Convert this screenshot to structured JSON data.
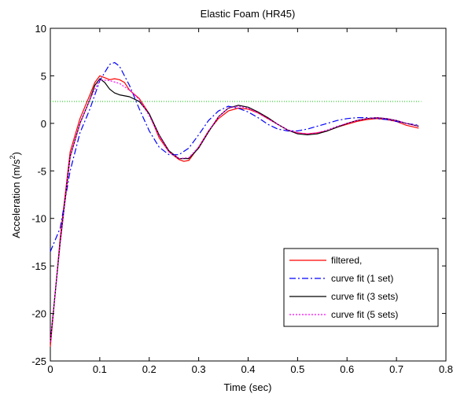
{
  "chart_data": {
    "type": "line",
    "title": "Elastic Foam (HR45)",
    "xlabel": "Time (sec)",
    "ylabel_main": "Acceleration (m/s",
    "ylabel_sup": "2",
    "ylabel_close": ")",
    "xlim": [
      0,
      0.8
    ],
    "ylim": [
      -25,
      10
    ],
    "xticks": [
      0,
      0.1,
      0.2,
      0.3,
      0.4,
      0.5,
      0.6,
      0.7,
      0.8
    ],
    "xtick_labels": [
      "0",
      "0.1",
      "0.2",
      "0.3",
      "0.4",
      "0.5",
      "0.6",
      "0.7",
      "0.8"
    ],
    "yticks": [
      -25,
      -20,
      -15,
      -10,
      -5,
      0,
      5,
      10
    ],
    "ytick_labels": [
      "-25",
      "-20",
      "-15",
      "-10",
      "-5",
      "0",
      "5",
      "10"
    ],
    "grid": false,
    "legend_position": "bottom-right",
    "reference_line": {
      "y": 2.3,
      "color": "#00c000",
      "style": "dotted"
    },
    "series": [
      {
        "name": "filtered,",
        "color": "#ff0000",
        "style": "solid",
        "x": [
          0,
          0.02,
          0.04,
          0.06,
          0.08,
          0.09,
          0.1,
          0.11,
          0.12,
          0.13,
          0.14,
          0.15,
          0.16,
          0.18,
          0.2,
          0.22,
          0.24,
          0.26,
          0.27,
          0.28,
          0.3,
          0.32,
          0.34,
          0.36,
          0.38,
          0.4,
          0.42,
          0.44,
          0.46,
          0.48,
          0.5,
          0.52,
          0.54,
          0.56,
          0.58,
          0.6,
          0.62,
          0.64,
          0.66,
          0.68,
          0.7,
          0.72,
          0.745
        ],
        "y": [
          -23.5,
          -12,
          -3,
          0.5,
          3,
          4.3,
          5.0,
          4.8,
          4.6,
          4.7,
          4.6,
          4.3,
          3.5,
          2.6,
          1.0,
          -1.5,
          -3.0,
          -3.8,
          -4.0,
          -3.9,
          -2.5,
          -0.8,
          0.5,
          1.3,
          1.6,
          1.5,
          1.1,
          0.5,
          -0.1,
          -0.7,
          -1.0,
          -1.1,
          -1.0,
          -0.8,
          -0.4,
          -0.1,
          0.2,
          0.4,
          0.5,
          0.4,
          0.2,
          -0.2,
          -0.5
        ]
      },
      {
        "name": "curve fit (1 set)",
        "color": "#0000ff",
        "style": "dashdot",
        "x": [
          0,
          0.02,
          0.04,
          0.06,
          0.08,
          0.1,
          0.12,
          0.13,
          0.14,
          0.16,
          0.18,
          0.2,
          0.22,
          0.24,
          0.26,
          0.28,
          0.3,
          0.32,
          0.34,
          0.36,
          0.38,
          0.4,
          0.42,
          0.44,
          0.46,
          0.48,
          0.5,
          0.52,
          0.54,
          0.56,
          0.58,
          0.6,
          0.62,
          0.64,
          0.66,
          0.68,
          0.7,
          0.72,
          0.745
        ],
        "y": [
          -13.5,
          -11,
          -5,
          -1,
          1.5,
          4.5,
          6.2,
          6.4,
          6.0,
          4.0,
          1.5,
          -0.8,
          -2.5,
          -3.3,
          -3.3,
          -2.6,
          -1.2,
          0.3,
          1.3,
          1.8,
          1.6,
          1.2,
          0.6,
          -0.1,
          -0.6,
          -0.8,
          -0.8,
          -0.6,
          -0.3,
          0.0,
          0.3,
          0.5,
          0.6,
          0.6,
          0.5,
          0.4,
          0.2,
          0.0,
          -0.2
        ]
      },
      {
        "name": "curve fit (3 sets)",
        "color": "#000000",
        "style": "solid",
        "x": [
          0,
          0.02,
          0.04,
          0.06,
          0.08,
          0.09,
          0.1,
          0.11,
          0.12,
          0.13,
          0.14,
          0.16,
          0.18,
          0.2,
          0.22,
          0.24,
          0.26,
          0.28,
          0.3,
          0.32,
          0.34,
          0.36,
          0.38,
          0.4,
          0.42,
          0.44,
          0.46,
          0.48,
          0.5,
          0.52,
          0.54,
          0.56,
          0.58,
          0.6,
          0.62,
          0.64,
          0.66,
          0.68,
          0.7,
          0.72,
          0.745
        ],
        "y": [
          -23,
          -12.5,
          -3.5,
          0,
          2.5,
          4.0,
          4.7,
          4.3,
          3.6,
          3.2,
          3.0,
          2.8,
          2.3,
          1.0,
          -1.2,
          -2.9,
          -3.7,
          -3.7,
          -2.6,
          -0.9,
          0.7,
          1.6,
          1.9,
          1.7,
          1.2,
          0.6,
          -0.1,
          -0.7,
          -1.1,
          -1.2,
          -1.1,
          -0.8,
          -0.4,
          0.0,
          0.3,
          0.5,
          0.6,
          0.5,
          0.3,
          0.0,
          -0.3
        ]
      },
      {
        "name": "curve fit (5 sets)",
        "color": "#ff00ff",
        "style": "dotted",
        "x": [
          0,
          0.02,
          0.04,
          0.06,
          0.08,
          0.1,
          0.12,
          0.14,
          0.16,
          0.18,
          0.2,
          0.22,
          0.24,
          0.26,
          0.28,
          0.3,
          0.32,
          0.34,
          0.36,
          0.38,
          0.4,
          0.42,
          0.44,
          0.46,
          0.48,
          0.5,
          0.52,
          0.54,
          0.56,
          0.58,
          0.6,
          0.62,
          0.64,
          0.66,
          0.68,
          0.7,
          0.72,
          0.745
        ],
        "y": [
          -23,
          -12.5,
          -3.5,
          0,
          2.5,
          4.6,
          4.5,
          4.2,
          3.5,
          2.5,
          0.8,
          -1.3,
          -3.0,
          -3.7,
          -3.6,
          -2.5,
          -0.8,
          0.7,
          1.6,
          1.8,
          1.6,
          1.1,
          0.5,
          -0.1,
          -0.7,
          -1.0,
          -1.1,
          -1.0,
          -0.7,
          -0.3,
          0.0,
          0.3,
          0.5,
          0.6,
          0.5,
          0.3,
          0.0,
          -0.3
        ]
      }
    ]
  }
}
